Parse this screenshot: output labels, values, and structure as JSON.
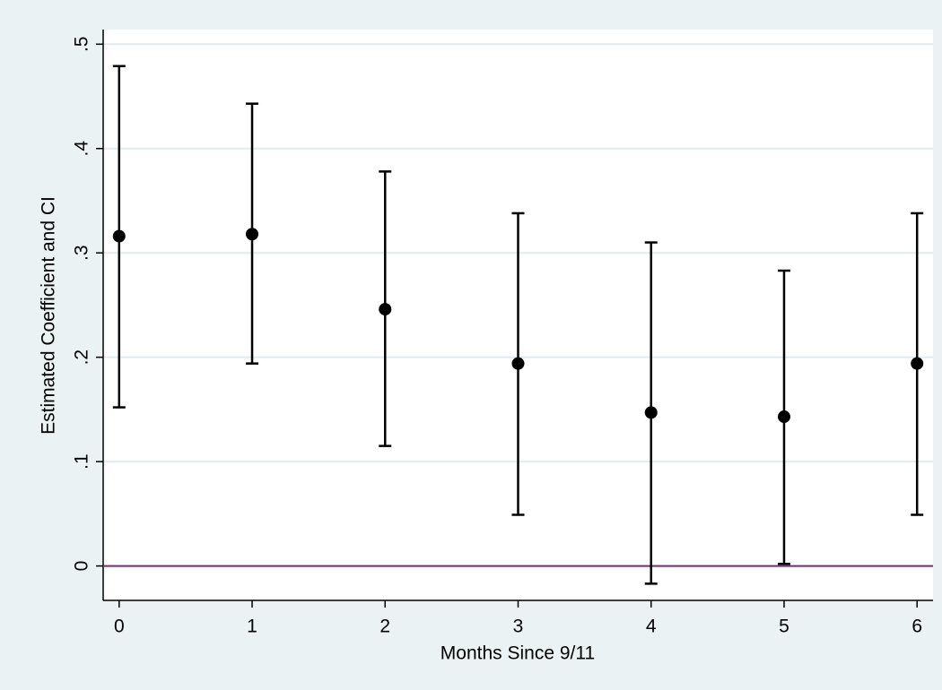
{
  "chart_data": {
    "type": "errorbar",
    "x_label": "Months Since 9/11",
    "y_label": "Estimated Coefficient and CI",
    "x": [
      0,
      1,
      2,
      3,
      4,
      5,
      6
    ],
    "values": [
      0.316,
      0.318,
      0.246,
      0.194,
      0.147,
      0.143,
      0.194
    ],
    "lower": [
      0.152,
      0.194,
      0.115,
      0.049,
      -0.017,
      0.002,
      0.049
    ],
    "upper": [
      0.479,
      0.443,
      0.378,
      0.338,
      0.31,
      0.283,
      0.338
    ],
    "color": "#000000",
    "xlim": [
      -0.12,
      6.12
    ],
    "xticks": [
      0,
      1,
      2,
      3,
      4,
      5,
      6
    ],
    "ylim": [
      -0.033,
      0.514
    ],
    "yticks": [
      0,
      {
        "value": 0.1,
        "label": ".1"
      },
      {
        "value": 0.2,
        "label": ".2"
      },
      {
        "value": 0.3,
        "label": ".3"
      },
      {
        "value": 0.4,
        "label": ".4"
      },
      {
        "value": 0.5,
        "label": ".5"
      }
    ],
    "grid": true,
    "grid_color": "#e3ebee",
    "yline": 0,
    "yline_color": "#7a2a6f"
  }
}
